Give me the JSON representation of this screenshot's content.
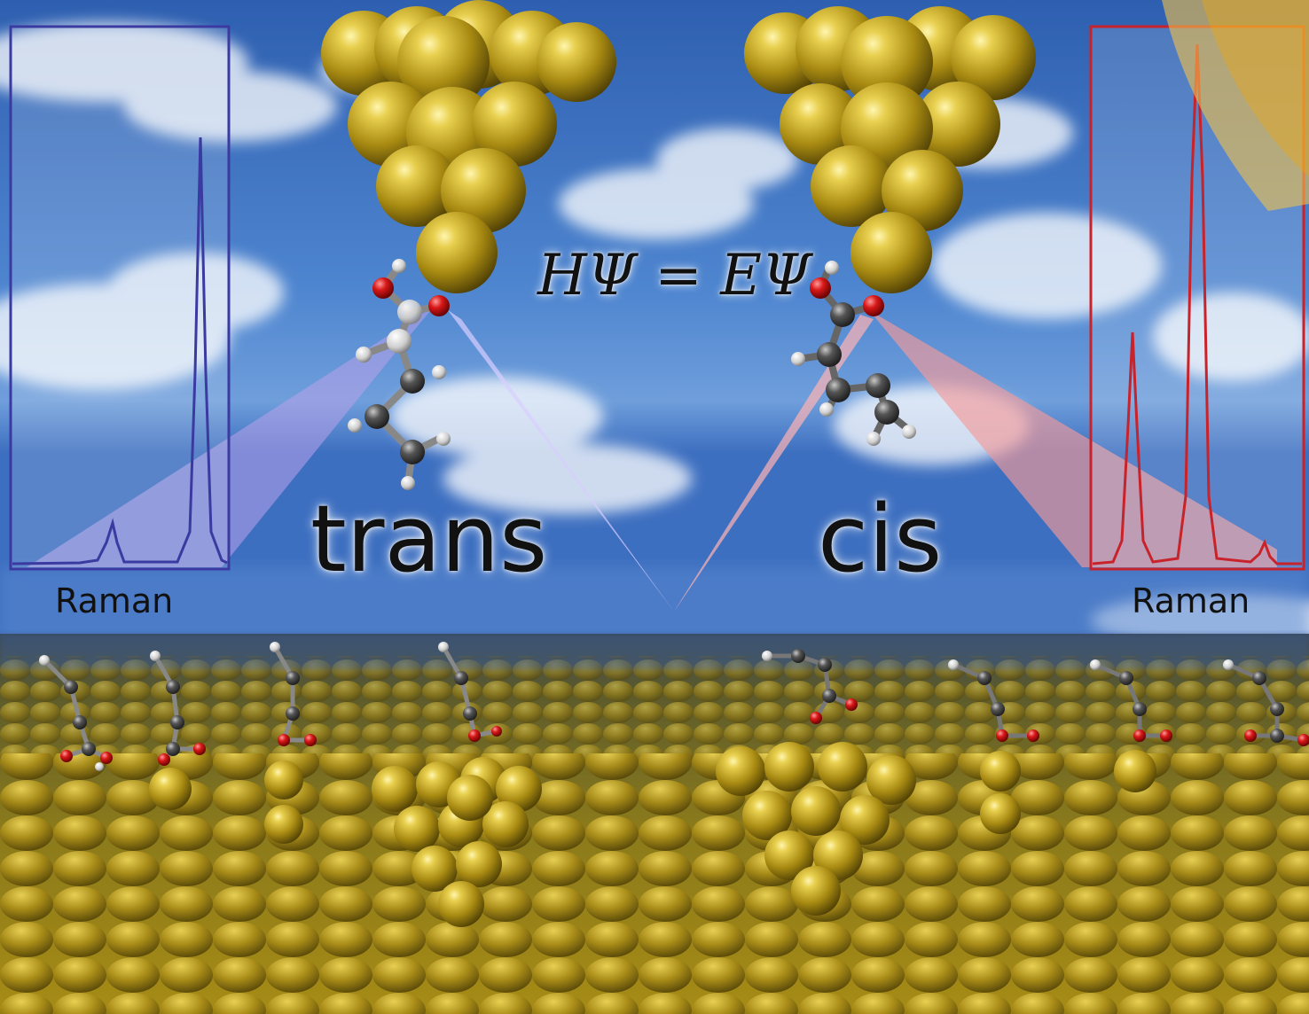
{
  "equation": "HΨ = EΨ",
  "labels": {
    "trans": "trans",
    "cis": "cis"
  },
  "spectra": {
    "left": {
      "label": "Raman",
      "color": "#3a3aa0"
    },
    "right": {
      "label": "Raman",
      "color": "#c8232a"
    }
  },
  "colors": {
    "sky_top": "#2f62b4",
    "sky_bottom": "#7aa8dc",
    "gold": "#b89a1c",
    "gold_light": "#f5e27a",
    "oxygen": "#d01515",
    "carbon": "#555555",
    "hydrogen": "#e6e6e6",
    "beam_blue": "#b8a0e8",
    "beam_red": "#ff8c8c"
  }
}
